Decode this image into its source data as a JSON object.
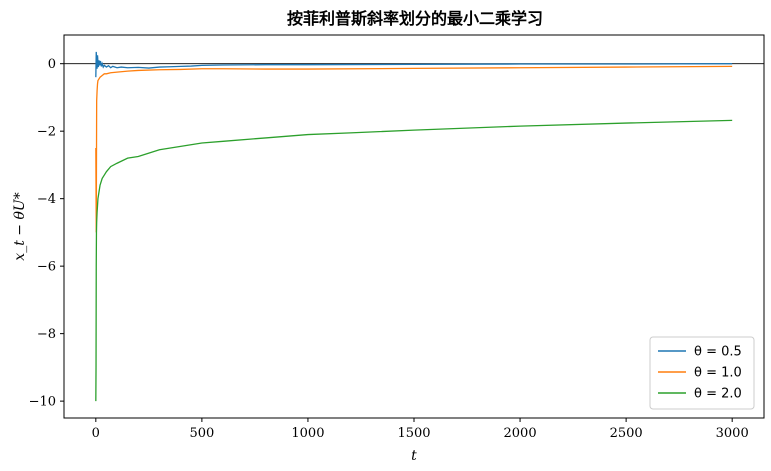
{
  "chart_data": {
    "type": "line",
    "title": "按菲利普斯斜率划分的最小二乘学习",
    "xlabel": "t",
    "ylabel": "x_t − θU*",
    "xlim": [
      -150,
      3150
    ],
    "ylim": [
      -10.5,
      0.85
    ],
    "xticks": [
      0,
      500,
      1000,
      1500,
      2000,
      2500,
      3000
    ],
    "xtick_labels": [
      "0",
      "500",
      "1000",
      "1500",
      "2000",
      "2500",
      "3000"
    ],
    "yticks": [
      0,
      -2,
      -4,
      -6,
      -8,
      -10
    ],
    "ytick_labels": [
      "0",
      "−2",
      "−4",
      "−6",
      "−8",
      "−10"
    ],
    "hline": 0,
    "grid": false,
    "legend_position": "lower-right",
    "series": [
      {
        "name": "θ = 0.5",
        "color": "#1f77b4",
        "x": [
          0,
          2,
          4,
          6,
          8,
          10,
          12,
          15,
          18,
          22,
          26,
          30,
          35,
          40,
          50,
          60,
          70,
          80,
          100,
          120,
          150,
          200,
          250,
          300,
          350,
          400,
          450,
          500,
          600,
          800,
          1000,
          1500,
          2000,
          2500,
          3000
        ],
        "y": [
          -0.4,
          0.35,
          0.1,
          -0.15,
          0.25,
          0.05,
          -0.1,
          0.1,
          -0.05,
          0.08,
          -0.08,
          0.0,
          -0.1,
          -0.05,
          -0.1,
          -0.06,
          -0.12,
          -0.08,
          -0.12,
          -0.1,
          -0.12,
          -0.11,
          -0.13,
          -0.1,
          -0.09,
          -0.08,
          -0.07,
          -0.05,
          -0.04,
          -0.03,
          -0.03,
          -0.02,
          -0.01,
          -0.01,
          0.0
        ]
      },
      {
        "name": "θ = 1.0",
        "color": "#ff7f0e",
        "x": [
          0,
          2,
          4,
          6,
          8,
          10,
          15,
          20,
          30,
          40,
          50,
          70,
          100,
          150,
          200,
          300,
          400,
          500,
          600,
          800,
          1000,
          1500,
          2000,
          2500,
          3000
        ],
        "y": [
          -2.5,
          -5.0,
          -1.1,
          -0.8,
          -0.6,
          -0.5,
          -0.45,
          -0.4,
          -0.35,
          -0.3,
          -0.3,
          -0.27,
          -0.25,
          -0.22,
          -0.2,
          -0.18,
          -0.17,
          -0.15,
          -0.15,
          -0.16,
          -0.16,
          -0.14,
          -0.12,
          -0.1,
          -0.08
        ]
      },
      {
        "name": "θ = 2.0",
        "color": "#2ca02c",
        "x": [
          0,
          1,
          2,
          3,
          4,
          6,
          8,
          10,
          15,
          20,
          30,
          40,
          50,
          70,
          100,
          150,
          200,
          250,
          300,
          400,
          500,
          600,
          800,
          1000,
          1200,
          1500,
          2000,
          2500,
          3000
        ],
        "y": [
          -10.0,
          -9.0,
          -6.0,
          -5.0,
          -4.7,
          -4.4,
          -4.2,
          -4.0,
          -3.8,
          -3.6,
          -3.4,
          -3.3,
          -3.2,
          -3.05,
          -2.95,
          -2.8,
          -2.75,
          -2.65,
          -2.55,
          -2.45,
          -2.35,
          -2.3,
          -2.2,
          -2.1,
          -2.05,
          -1.97,
          -1.85,
          -1.76,
          -1.68
        ]
      }
    ]
  }
}
